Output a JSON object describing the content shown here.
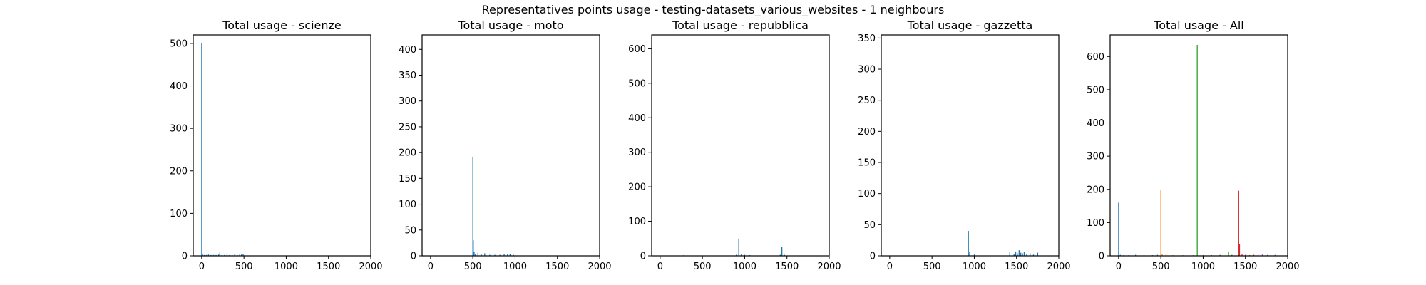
{
  "figure": {
    "suptitle": "Representatives points usage - testing-datasets_various_websites - 1 neighbours"
  },
  "chart_data": [
    {
      "type": "bar",
      "title": "Total usage - scienze",
      "xlabel": "",
      "ylabel": "",
      "xlim": [
        -100,
        2000
      ],
      "ylim": [
        0,
        520
      ],
      "xticks": [
        0,
        500,
        1000,
        1500,
        2000
      ],
      "yticks": [
        0,
        100,
        200,
        300,
        400,
        500
      ],
      "series": [
        {
          "color": "#1f77b4",
          "points": [
            [
              0,
              500
            ],
            [
              10,
              3
            ],
            [
              30,
              2
            ],
            [
              55,
              2
            ],
            [
              80,
              3
            ],
            [
              110,
              2
            ],
            [
              140,
              2
            ],
            [
              170,
              2
            ],
            [
              200,
              3
            ],
            [
              215,
              8
            ],
            [
              240,
              2
            ],
            [
              270,
              2
            ],
            [
              300,
              3
            ],
            [
              330,
              2
            ],
            [
              360,
              2
            ],
            [
              390,
              3
            ],
            [
              420,
              2
            ],
            [
              450,
              5
            ],
            [
              470,
              3
            ],
            [
              490,
              4
            ],
            [
              510,
              2
            ]
          ]
        }
      ]
    },
    {
      "type": "bar",
      "title": "Total usage - moto",
      "xlabel": "",
      "ylabel": "",
      "xlim": [
        -100,
        2000
      ],
      "ylim": [
        0,
        428
      ],
      "xticks": [
        0,
        500,
        1000,
        1500,
        2000
      ],
      "yticks": [
        0,
        50,
        100,
        150,
        200,
        250,
        300,
        350,
        400
      ],
      "series": [
        {
          "color": "#1f77b4",
          "points": [
            [
              500,
              192
            ],
            [
              505,
              30
            ],
            [
              515,
              8
            ],
            [
              530,
              4
            ],
            [
              560,
              6
            ],
            [
              600,
              3
            ],
            [
              640,
              5
            ],
            [
              700,
              2
            ],
            [
              760,
              2
            ],
            [
              820,
              2
            ],
            [
              870,
              3
            ],
            [
              910,
              4
            ],
            [
              940,
              3
            ],
            [
              980,
              2
            ]
          ]
        }
      ]
    },
    {
      "type": "bar",
      "title": "Total usage - repubblica",
      "xlabel": "",
      "ylabel": "",
      "xlim": [
        -100,
        2000
      ],
      "ylim": [
        0,
        640
      ],
      "xticks": [
        0,
        500,
        1000,
        1500,
        2000
      ],
      "yticks": [
        0,
        100,
        200,
        300,
        400,
        500,
        600
      ],
      "series": [
        {
          "color": "#1f77b4",
          "points": [
            [
              280,
              2
            ],
            [
              900,
              3
            ],
            [
              930,
              50
            ],
            [
              960,
              4
            ],
            [
              1000,
              3
            ],
            [
              1060,
              2
            ],
            [
              1420,
              3
            ],
            [
              1440,
              25
            ],
            [
              1470,
              3
            ]
          ]
        }
      ]
    },
    {
      "type": "bar",
      "title": "Total usage - gazzetta",
      "xlabel": "",
      "ylabel": "",
      "xlim": [
        -100,
        2000
      ],
      "ylim": [
        0,
        355
      ],
      "xticks": [
        0,
        500,
        1000,
        1500,
        2000
      ],
      "yticks": [
        0,
        50,
        100,
        150,
        200,
        250,
        300,
        350
      ],
      "series": [
        {
          "color": "#1f77b4",
          "points": [
            [
              930,
              40
            ],
            [
              945,
              6
            ],
            [
              1000,
              2
            ],
            [
              1420,
              6
            ],
            [
              1470,
              3
            ],
            [
              1490,
              7
            ],
            [
              1510,
              4
            ],
            [
              1530,
              9
            ],
            [
              1550,
              5
            ],
            [
              1570,
              4
            ],
            [
              1590,
              6
            ],
            [
              1620,
              3
            ],
            [
              1660,
              4
            ],
            [
              1700,
              2
            ],
            [
              1750,
              5
            ]
          ]
        }
      ]
    },
    {
      "type": "bar",
      "title": "Total usage - All",
      "xlabel": "",
      "ylabel": "",
      "xlim": [
        -100,
        2000
      ],
      "ylim": [
        0,
        665
      ],
      "xticks": [
        0,
        500,
        1000,
        1500,
        2000
      ],
      "yticks": [
        0,
        100,
        200,
        300,
        400,
        500,
        600
      ],
      "series": [
        {
          "color": "#1f77b4",
          "points": [
            [
              0,
              160
            ],
            [
              20,
              3
            ],
            [
              60,
              2
            ],
            [
              120,
              2
            ],
            [
              200,
              3
            ],
            [
              300,
              2
            ],
            [
              400,
              2
            ],
            [
              460,
              3
            ]
          ]
        },
        {
          "color": "#ff7f0e",
          "points": [
            [
              500,
              198
            ],
            [
              515,
              6
            ],
            [
              560,
              3
            ],
            [
              640,
              2
            ],
            [
              760,
              2
            ],
            [
              880,
              2
            ]
          ]
        },
        {
          "color": "#2ca02c",
          "points": [
            [
              930,
              635
            ],
            [
              1000,
              2
            ],
            [
              1100,
              2
            ],
            [
              1200,
              3
            ],
            [
              1300,
              12
            ],
            [
              1340,
              3
            ]
          ]
        },
        {
          "color": "#d62728",
          "points": [
            [
              1420,
              196
            ],
            [
              1430,
              35
            ],
            [
              1460,
              4
            ],
            [
              1500,
              3
            ],
            [
              1550,
              2
            ],
            [
              1600,
              3
            ]
          ]
        },
        {
          "color": "#9467bd",
          "points": [
            [
              1650,
              2
            ],
            [
              1700,
              4
            ],
            [
              1760,
              3
            ],
            [
              1800,
              2
            ],
            [
              1850,
              3
            ]
          ]
        }
      ]
    }
  ]
}
